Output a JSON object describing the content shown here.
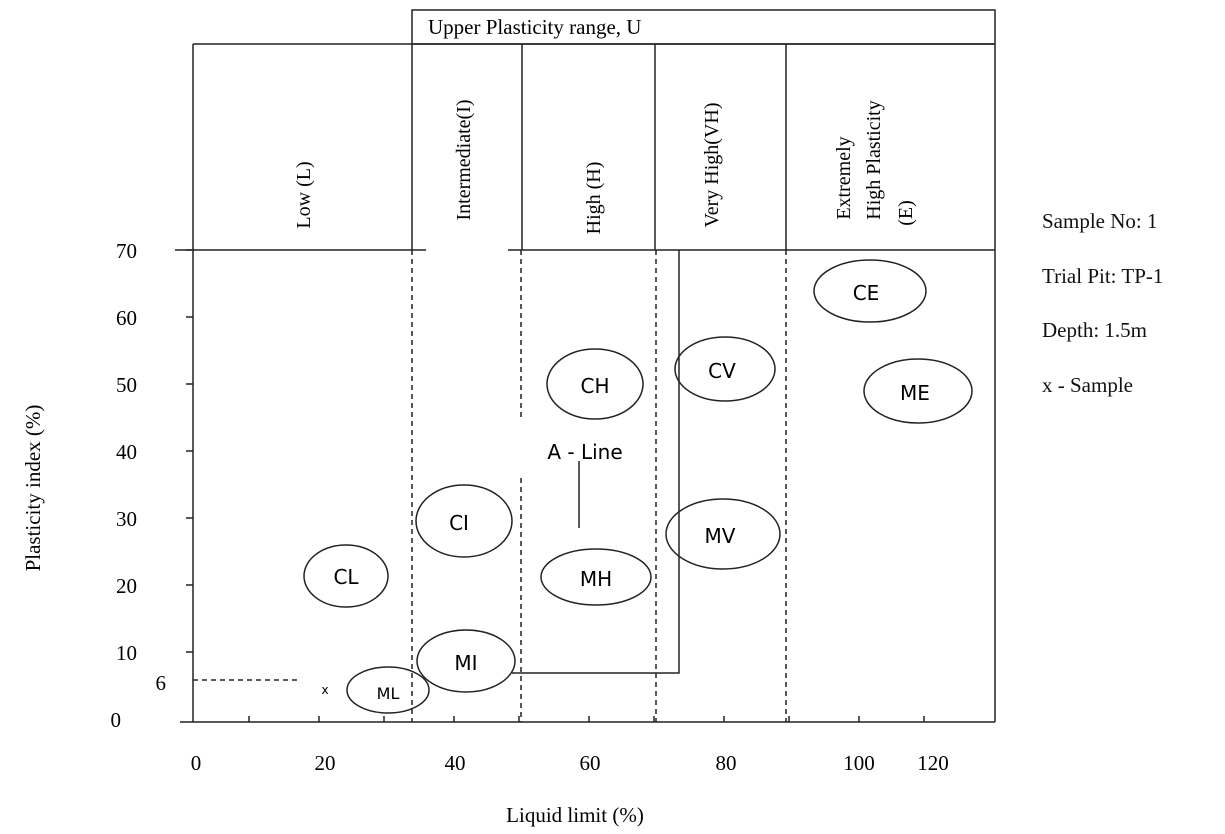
{
  "banner": "Upper Plasticity range, U",
  "zones": [
    {
      "id": "low",
      "label": "Low (L)"
    },
    {
      "id": "intermediate",
      "label": "Intermediate(I)"
    },
    {
      "id": "high",
      "label": "High (H)"
    },
    {
      "id": "very-high",
      "label": "Very High(VH)"
    },
    {
      "id": "extremely-high",
      "label_lines": [
        "Extremely",
        "High Plasticity",
        "(E)"
      ]
    }
  ],
  "axes": {
    "xlabel": "Liquid limit (%)",
    "ylabel": "Plasticity index (%)",
    "xticks": [
      "0",
      "20",
      "40",
      "60",
      "80",
      "100",
      "120"
    ],
    "yticks": [
      "0",
      "10",
      "20",
      "30",
      "40",
      "50",
      "60",
      "70"
    ],
    "y_extra_tick": "6"
  },
  "classes": [
    "CL",
    "ML",
    "CI",
    "MI",
    "CH",
    "MH",
    "CV",
    "MV",
    "CE",
    "ME"
  ],
  "a_line_label": "A - Line",
  "sample_info": {
    "sample_no": "Sample No: 1",
    "trial_pit": "Trial Pit: TP-1",
    "depth": "Depth: 1.5m",
    "legend": "x - Sample"
  }
}
